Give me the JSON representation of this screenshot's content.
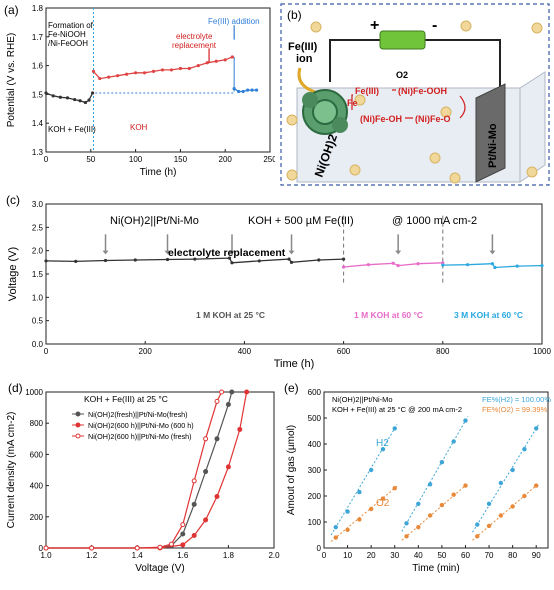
{
  "panel_a": {
    "label": "(a)",
    "note_formation": [
      "Formation of",
      "Fe-NiOOH",
      "/Ni-FeOOH"
    ],
    "note_electrolyte": [
      "electrolyte",
      "replacement"
    ],
    "note_fe": [
      "Fe(III) addition"
    ],
    "region_left": "KOH + Fe(III)",
    "region_mid": "KOH"
  },
  "panel_b": {
    "label": "(b)",
    "plus": "+",
    "minus": "-",
    "fe_ion": [
      "Fe(III)",
      "ion"
    ],
    "o2": "O2",
    "fe3": "Fe(III)",
    "ni_fe_oo_h": "(Ni)Fe-OOH",
    "fe": "Fe",
    "ni_fe_oh": "(Ni)Fe-OH",
    "ni_fe_o": "(Ni)Fe-O",
    "nioh2": "Ni(OH)2",
    "pt_ni_mo": "Pt/Ni-Mo",
    "colors": {
      "red": "#d21f1f",
      "green": "#1a8a3a",
      "border": "#3a5aa8"
    }
  },
  "panel_c": {
    "label": "(c)",
    "header_cell": "Ni(OH)2||Pt/Ni-Mo",
    "header_cond": "KOH + 500 µM Fe(III)",
    "header_j": "@ 1000 mA cm-2",
    "note_replace": "electrolyte replacement",
    "seg1": "1 M KOH at 25 °C",
    "seg2": "1 M KOH at 60 °C",
    "seg3": "3 M KOH at 60 °C"
  },
  "panel_d": {
    "label": "(d)",
    "cond": "KOH + Fe(III) at 25 °C"
  },
  "panel_e": {
    "label": "(e)",
    "line1": "Ni(OH)2||Pt/Ni-Mo",
    "line2": "KOH + Fe(III) at 25 °C @ 200 mA cm-2",
    "fe_h2": "FE%(H2) = 100.00%",
    "fe_o2": "FE%(O2) = 99.39%",
    "h2": "H2",
    "o2": "O2"
  },
  "chart_data": [
    {
      "id": "a",
      "type": "line",
      "xlabel": "Time (h)",
      "ylabel": "Potential (V vs. RHE)",
      "xlim": [
        0,
        250
      ],
      "ylim": [
        1.3,
        1.8
      ],
      "xticks": [
        0,
        50,
        100,
        150,
        200,
        250
      ],
      "yticks": [
        1.3,
        1.4,
        1.5,
        1.6,
        1.7,
        1.8
      ],
      "ref_level": 1.505,
      "markers_at": [
        53,
        210
      ],
      "series": [
        {
          "color": "#333333",
          "points": [
            [
              0,
              1.505
            ],
            [
              8,
              1.495
            ],
            [
              16,
              1.49
            ],
            [
              24,
              1.488
            ],
            [
              32,
              1.482
            ],
            [
              38,
              1.478
            ],
            [
              44,
              1.472
            ],
            [
              48,
              1.48
            ],
            [
              52,
              1.505
            ]
          ]
        },
        {
          "color": "#e04545",
          "points": [
            [
              53,
              1.58
            ],
            [
              60,
              1.555
            ],
            [
              70,
              1.56
            ],
            [
              80,
              1.565
            ],
            [
              90,
              1.57
            ],
            [
              100,
              1.575
            ],
            [
              110,
              1.575
            ],
            [
              120,
              1.58
            ],
            [
              130,
              1.585
            ],
            [
              140,
              1.585
            ],
            [
              150,
              1.59
            ],
            [
              160,
              1.59
            ],
            [
              170,
              1.6
            ],
            [
              180,
              1.61
            ],
            [
              190,
              1.615
            ],
            [
              200,
              1.62
            ],
            [
              208,
              1.63
            ]
          ]
        },
        {
          "color": "#2f7fd6",
          "points": [
            [
              210,
              1.52
            ],
            [
              215,
              1.51
            ],
            [
              220,
              1.51
            ],
            [
              225,
              1.515
            ],
            [
              230,
              1.515
            ],
            [
              235,
              1.515
            ]
          ]
        }
      ]
    },
    {
      "id": "c",
      "type": "line",
      "xlabel": "Time (h)",
      "ylabel": "Voltage (V)",
      "xlim": [
        0,
        1000
      ],
      "ylim": [
        0.0,
        3.0
      ],
      "xticks": [
        0,
        200,
        400,
        600,
        800,
        1000
      ],
      "yticks": [
        0.0,
        0.5,
        1.0,
        1.5,
        2.0,
        2.5,
        3.0
      ],
      "dividers": [
        600,
        800
      ],
      "arrows_at": [
        120,
        245,
        375,
        495,
        710,
        900
      ],
      "series": [
        {
          "name": "1 M KOH at 25 °C",
          "color": "#333333",
          "points": [
            [
              0,
              1.78
            ],
            [
              60,
              1.77
            ],
            [
              120,
              1.79
            ],
            [
              180,
              1.8
            ],
            [
              245,
              1.81
            ],
            [
              300,
              1.82
            ],
            [
              370,
              1.84
            ],
            [
              375,
              1.74
            ],
            [
              430,
              1.78
            ],
            [
              490,
              1.82
            ],
            [
              495,
              1.75
            ],
            [
              550,
              1.8
            ],
            [
              600,
              1.82
            ]
          ]
        },
        {
          "name": "1 M KOH at 60 °C",
          "color": "#e76cc8",
          "points": [
            [
              600,
              1.65
            ],
            [
              650,
              1.7
            ],
            [
              700,
              1.73
            ],
            [
              710,
              1.68
            ],
            [
              750,
              1.72
            ],
            [
              800,
              1.74
            ]
          ]
        },
        {
          "name": "3 M KOH at 60 °C",
          "color": "#2aa8e0",
          "points": [
            [
              800,
              1.69
            ],
            [
              850,
              1.7
            ],
            [
              900,
              1.72
            ],
            [
              905,
              1.64
            ],
            [
              950,
              1.67
            ],
            [
              1000,
              1.68
            ]
          ]
        }
      ]
    },
    {
      "id": "d",
      "type": "scatter",
      "xlabel": "Voltage (V)",
      "ylabel": "Current density (mA cm-2)",
      "xlim": [
        1.0,
        2.0
      ],
      "ylim": [
        0,
        1000
      ],
      "xticks": [
        1.0,
        1.2,
        1.4,
        1.6,
        1.8,
        2.0
      ],
      "yticks": [
        0,
        200,
        400,
        600,
        800,
        1000
      ],
      "legend": [
        "Ni(OH)2(fresh)||Pt/Ni-Mo(fresh)",
        "Ni(OH)2(600 h)||Pt/Ni-Mo (600 h)",
        "Ni(OH)2(600 h)||Pt/Ni-Mo (fresh)"
      ],
      "series": [
        {
          "color": "#555555",
          "open": false,
          "points": [
            [
              1.0,
              0
            ],
            [
              1.2,
              0
            ],
            [
              1.4,
              0
            ],
            [
              1.5,
              3
            ],
            [
              1.55,
              15
            ],
            [
              1.6,
              90
            ],
            [
              1.65,
              280
            ],
            [
              1.7,
              490
            ],
            [
              1.75,
              700
            ],
            [
              1.8,
              920
            ],
            [
              1.815,
              1000
            ]
          ]
        },
        {
          "color": "#e03535",
          "open": false,
          "points": [
            [
              1.0,
              0
            ],
            [
              1.2,
              0
            ],
            [
              1.4,
              0
            ],
            [
              1.5,
              0
            ],
            [
              1.6,
              20
            ],
            [
              1.65,
              80
            ],
            [
              1.7,
              180
            ],
            [
              1.75,
              330
            ],
            [
              1.8,
              520
            ],
            [
              1.85,
              760
            ],
            [
              1.88,
              1000
            ]
          ]
        },
        {
          "color": "#e03535",
          "open": true,
          "points": [
            [
              1.0,
              0
            ],
            [
              1.2,
              0
            ],
            [
              1.4,
              0
            ],
            [
              1.5,
              5
            ],
            [
              1.55,
              25
            ],
            [
              1.6,
              150
            ],
            [
              1.65,
              430
            ],
            [
              1.7,
              700
            ],
            [
              1.75,
              940
            ],
            [
              1.77,
              1000
            ]
          ]
        }
      ]
    },
    {
      "id": "e",
      "type": "scatter",
      "xlabel": "Time (min)",
      "ylabel": "Amout of gas (µmol)",
      "xlim": [
        0,
        95
      ],
      "ylim": [
        0,
        600
      ],
      "xticks": [
        0,
        10,
        20,
        30,
        40,
        50,
        60,
        70,
        80,
        90
      ],
      "yticks": [
        0,
        100,
        200,
        300,
        400,
        500,
        600
      ],
      "series": [
        {
          "name": "H2",
          "color": "#3ea6d6",
          "points": [
            [
              5,
              80
            ],
            [
              10,
              140
            ],
            [
              15,
              215
            ],
            [
              20,
              300
            ],
            [
              25,
              380
            ],
            [
              30,
              460
            ],
            [
              35,
              95
            ],
            [
              40,
              170
            ],
            [
              45,
              245
            ],
            [
              50,
              330
            ],
            [
              55,
              410
            ],
            [
              60,
              490
            ],
            [
              65,
              90
            ],
            [
              70,
              170
            ],
            [
              75,
              250
            ],
            [
              80,
              300
            ],
            [
              85,
              380
            ],
            [
              90,
              460
            ]
          ]
        },
        {
          "name": "O2",
          "color": "#e8893a",
          "points": [
            [
              5,
              40
            ],
            [
              10,
              70
            ],
            [
              15,
              110
            ],
            [
              20,
              150
            ],
            [
              25,
              190
            ],
            [
              30,
              230
            ],
            [
              35,
              45
            ],
            [
              40,
              80
            ],
            [
              45,
              125
            ],
            [
              50,
              165
            ],
            [
              55,
              205
            ],
            [
              60,
              240
            ],
            [
              65,
              45
            ],
            [
              70,
              85
            ],
            [
              75,
              125
            ],
            [
              80,
              160
            ],
            [
              85,
              200
            ],
            [
              90,
              240
            ]
          ]
        }
      ]
    }
  ]
}
